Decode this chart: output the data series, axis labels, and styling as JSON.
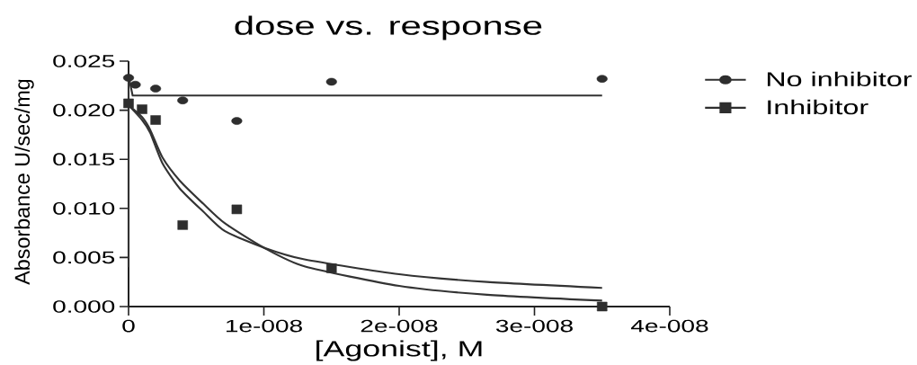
{
  "chart_data": {
    "type": "scatter",
    "title": "dose vs. response",
    "xlabel": "[Agonist], M",
    "ylabel": "Absorbance U/sec/mg",
    "xlim": [
      0,
      4e-08
    ],
    "ylim": [
      0,
      0.025
    ],
    "xticks": [
      0,
      {
        "value": 1e-08,
        "label": "1e-008"
      },
      {
        "value": 2e-08,
        "label": "2e-008"
      },
      {
        "value": 3e-08,
        "label": "3e-008"
      },
      {
        "value": 4e-08,
        "label": "4e-008"
      }
    ],
    "yticks": [
      {
        "value": 0,
        "label": "0.000"
      },
      {
        "value": 0.005,
        "label": "0.005"
      },
      {
        "value": 0.01,
        "label": "0.010"
      },
      {
        "value": 0.015,
        "label": "0.015"
      },
      {
        "value": 0.02,
        "label": "0.020"
      },
      {
        "value": 0.025,
        "label": "0.025"
      }
    ],
    "legend": "right",
    "series": [
      {
        "type": "line",
        "color": "#333333",
        "x": [
          0,
          0,
          3e-10,
          3.5e-08
        ],
        "values": [
          0.004,
          0.0235,
          0.0215,
          0.0215
        ]
      },
      {
        "type": "line",
        "color": "#333333",
        "x": [
          0,
          1e-09,
          1.6e-09,
          2.5e-09,
          3.8e-09,
          5.5e-09,
          7.1e-09,
          1e-08,
          1.3e-08,
          2e-08,
          2.65e-08,
          3.5e-08
        ],
        "values": [
          0.0205,
          0.019,
          0.0177,
          0.0146,
          0.012,
          0.0097,
          0.0077,
          0.006,
          0.0048,
          0.0033,
          0.0025,
          0.0019
        ]
      },
      {
        "type": "line",
        "color": "#333333",
        "x": [
          0,
          1e-09,
          1.6e-09,
          2.5e-09,
          3.8e-09,
          5.5e-09,
          7.1e-09,
          1e-08,
          1.3e-08,
          2e-08,
          2.65e-08,
          3.5e-08
        ],
        "values": [
          0.0205,
          0.0193,
          0.018,
          0.0152,
          0.0128,
          0.0105,
          0.0085,
          0.006,
          0.0041,
          0.0021,
          0.0012,
          0.0006
        ]
      },
      {
        "name": "No inhibitor",
        "marker": "circle",
        "color": "#2e2e2e",
        "x": [
          0,
          5e-10,
          2e-09,
          4e-09,
          8e-09,
          1.5e-08,
          3.5e-08
        ],
        "values": [
          0.0233,
          0.0226,
          0.0222,
          0.021,
          0.0189,
          0.0229,
          0.0232
        ]
      },
      {
        "name": "Inhibitor",
        "marker": "square",
        "color": "#2e2e2e",
        "x": [
          0,
          1e-09,
          2e-09,
          4e-09,
          8e-09,
          1.5e-08,
          3.5e-08
        ],
        "values": [
          0.0207,
          0.0201,
          0.019,
          0.0083,
          0.0099,
          0.0039,
          0.0
        ]
      }
    ]
  }
}
